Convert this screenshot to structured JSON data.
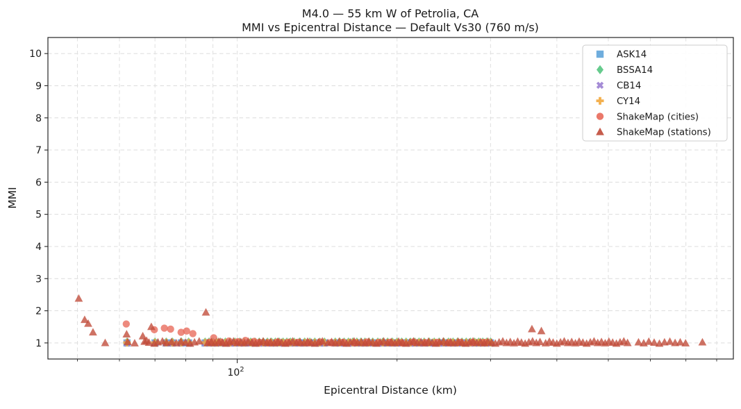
{
  "chart_data": {
    "type": "scatter",
    "title": "M4.0 — 55 km W of Petrolia, CA",
    "subtitle": "MMI vs Epicentral Distance — Default Vs30 (760 m/s)",
    "xlabel": "Epicentral Distance (km)",
    "ylabel": "MMI",
    "x_scale": "log",
    "xlim": [
      44,
      860
    ],
    "ylim": [
      0.5,
      10.5
    ],
    "grid": true,
    "y_ticks": [
      1,
      2,
      3,
      4,
      5,
      6,
      7,
      8,
      9,
      10
    ],
    "x_major_ticks": [
      {
        "value": 100,
        "base": "10",
        "exponent": "2"
      }
    ],
    "x_minor_ticks": [
      50,
      60,
      70,
      80,
      90,
      200,
      300,
      400,
      500,
      600,
      700,
      800
    ],
    "legend": {
      "position": "upper right"
    },
    "gmpe_distances_km": [
      62,
      70,
      73.5,
      75.5,
      78.5,
      81,
      87,
      88.5,
      90,
      91.5,
      93,
      95,
      97,
      99,
      101,
      103,
      106,
      108,
      110,
      112,
      114,
      116,
      118,
      120,
      122,
      124,
      126,
      128,
      131,
      134,
      137,
      140,
      143,
      146,
      153,
      156,
      159,
      162,
      165,
      168,
      171,
      174,
      177,
      180,
      184,
      188,
      192,
      196,
      200,
      204,
      208,
      212,
      216,
      220,
      225,
      230,
      235,
      240,
      245,
      250,
      255,
      260,
      265,
      270,
      275,
      280,
      285,
      290,
      295,
      300
    ],
    "series": [
      {
        "name": "ASK14",
        "marker": "square",
        "color": "#5fa4d9",
        "x": "gmpe_distances_km",
        "y_const": 1.0
      },
      {
        "name": "BSSA14",
        "marker": "diamond",
        "color": "#55c581",
        "x": "gmpe_distances_km",
        "y_const": 1.03
      },
      {
        "name": "CB14",
        "marker": "x",
        "color": "#9b80d2",
        "x": "gmpe_distances_km",
        "y_const": 0.99
      },
      {
        "name": "CY14",
        "marker": "plus",
        "color": "#f2a73c",
        "x": "gmpe_distances_km",
        "y_const": 1.01
      },
      {
        "name": "ShakeMap (cities)",
        "marker": "circle",
        "color": "#e8695a",
        "points": [
          [
            61.8,
            1.59
          ],
          [
            69.8,
            1.41
          ],
          [
            72.9,
            1.46
          ],
          [
            74.9,
            1.43
          ],
          [
            78.4,
            1.33
          ],
          [
            80.3,
            1.37
          ],
          [
            82.5,
            1.29
          ],
          [
            88.6,
            1.02
          ],
          [
            90.3,
            1.16
          ],
          [
            93.1,
            1.03
          ],
          [
            96.5,
            1.06
          ],
          [
            100.3,
            1.04
          ],
          [
            103.6,
            1.08
          ],
          [
            107.6,
            1.05
          ],
          [
            110.2,
            1.02
          ],
          [
            114.3,
            1.0
          ],
          [
            119.2,
            1.03
          ],
          [
            124.3,
            1.01
          ],
          [
            130.1,
            1.02
          ],
          [
            136.2,
            1.0
          ],
          [
            143.1,
            1.03
          ],
          [
            150.2,
            1.01
          ],
          [
            158.3,
            1.02
          ],
          [
            166.4,
            1.0
          ],
          [
            175.2,
            1.03
          ],
          [
            184.3,
            1.01
          ],
          [
            193.9,
            1.02
          ],
          [
            204.1,
            1.0
          ],
          [
            214.8,
            1.03
          ],
          [
            226.0,
            1.01
          ],
          [
            237.8,
            1.02
          ],
          [
            250.2,
            1.0
          ],
          [
            263.3,
            1.02
          ],
          [
            277.1,
            1.01
          ],
          [
            291.6,
            1.02
          ]
        ]
      },
      {
        "name": "ShakeMap (stations)",
        "marker": "triangle",
        "color": "#c04a38",
        "points": [
          [
            50.3,
            2.38
          ],
          [
            51.6,
            1.72
          ],
          [
            52.4,
            1.6
          ],
          [
            53.5,
            1.33
          ],
          [
            61.9,
            1.27
          ],
          [
            66.4,
            1.21
          ],
          [
            67.5,
            1.07
          ],
          [
            68.9,
            1.5
          ],
          [
            87.3,
            1.95
          ],
          [
            359,
            1.43
          ],
          [
            374,
            1.37
          ],
          [
            56.4,
            1.0
          ],
          [
            62.2,
            1.03
          ],
          [
            64.1,
            0.99
          ],
          [
            66.9,
            1.04
          ],
          [
            68.2,
            1.01
          ],
          [
            69.8,
            0.98
          ],
          [
            70.9,
            1.02
          ],
          [
            72.3,
            1.05
          ],
          [
            73.6,
            1.0
          ],
          [
            75.2,
            1.03
          ],
          [
            76.8,
            0.99
          ],
          [
            78.3,
            1.04
          ],
          [
            79.9,
            1.01
          ],
          [
            81.5,
            0.98
          ],
          [
            83.1,
            1.02
          ],
          [
            84.8,
            1.05
          ],
          [
            88.0,
            1.0
          ],
          [
            89.4,
            1.03
          ],
          [
            90.8,
            0.99
          ],
          [
            92.3,
            1.04
          ],
          [
            93.8,
            1.01
          ],
          [
            95.3,
            0.98
          ],
          [
            96.8,
            1.02
          ],
          [
            98.4,
            1.05
          ],
          [
            100.0,
            1.0
          ],
          [
            101.6,
            1.03
          ],
          [
            103.2,
            0.99
          ],
          [
            104.9,
            1.04
          ],
          [
            106.6,
            1.01
          ],
          [
            108.3,
            0.98
          ],
          [
            110.1,
            1.02
          ],
          [
            111.9,
            1.05
          ],
          [
            113.7,
            1.0
          ],
          [
            115.5,
            1.03
          ],
          [
            117.4,
            0.99
          ],
          [
            119.3,
            1.04
          ],
          [
            121.2,
            1.01
          ],
          [
            123.2,
            0.98
          ],
          [
            125.2,
            1.02
          ],
          [
            127.2,
            1.05
          ],
          [
            129.3,
            1.0
          ],
          [
            131.4,
            1.03
          ],
          [
            133.5,
            0.99
          ],
          [
            135.7,
            1.04
          ],
          [
            137.9,
            1.01
          ],
          [
            140.1,
            0.98
          ],
          [
            142.4,
            1.02
          ],
          [
            144.7,
            1.05
          ],
          [
            148.2,
            1.0
          ],
          [
            150.6,
            1.03
          ],
          [
            153.1,
            0.99
          ],
          [
            155.6,
            1.04
          ],
          [
            158.1,
            1.01
          ],
          [
            160.7,
            0.98
          ],
          [
            163.3,
            1.02
          ],
          [
            166.0,
            1.05
          ],
          [
            168.7,
            1.0
          ],
          [
            171.4,
            1.03
          ],
          [
            174.2,
            0.99
          ],
          [
            177.0,
            1.04
          ],
          [
            179.9,
            1.01
          ],
          [
            182.8,
            0.98
          ],
          [
            185.8,
            1.02
          ],
          [
            188.8,
            1.05
          ],
          [
            191.9,
            1.0
          ],
          [
            195.0,
            1.03
          ],
          [
            198.2,
            0.99
          ],
          [
            201.4,
            1.04
          ],
          [
            204.7,
            1.01
          ],
          [
            208.0,
            0.98
          ],
          [
            211.4,
            1.02
          ],
          [
            214.8,
            1.05
          ],
          [
            218.3,
            1.0
          ],
          [
            221.9,
            1.03
          ],
          [
            225.5,
            0.99
          ],
          [
            229.2,
            1.04
          ],
          [
            232.9,
            1.01
          ],
          [
            236.7,
            0.98
          ],
          [
            240.5,
            1.02
          ],
          [
            244.4,
            1.05
          ],
          [
            248.4,
            1.0
          ],
          [
            252.4,
            1.03
          ],
          [
            256.5,
            0.99
          ],
          [
            260.7,
            1.04
          ],
          [
            265.0,
            1.01
          ],
          [
            269.3,
            0.98
          ],
          [
            273.7,
            1.02
          ],
          [
            278.1,
            1.05
          ],
          [
            282.6,
            1.0
          ],
          [
            287.2,
            1.03
          ],
          [
            291.9,
            0.99
          ],
          [
            296.6,
            1.04
          ],
          [
            301.5,
            1.01
          ],
          [
            306.4,
            0.98
          ],
          [
            311.4,
            1.02
          ],
          [
            316.4,
            1.05
          ],
          [
            321.6,
            1.0
          ],
          [
            326.8,
            1.03
          ],
          [
            332.1,
            0.99
          ],
          [
            337.5,
            1.04
          ],
          [
            343.0,
            1.01
          ],
          [
            348.6,
            0.98
          ],
          [
            354.3,
            1.02
          ],
          [
            360.0,
            1.05
          ],
          [
            365.9,
            1.0
          ],
          [
            371.8,
            1.03
          ],
          [
            381.0,
            0.99
          ],
          [
            387.2,
            1.04
          ],
          [
            393.5,
            1.01
          ],
          [
            399.9,
            0.98
          ],
          [
            406.4,
            1.02
          ],
          [
            413.0,
            1.05
          ],
          [
            419.8,
            1.0
          ],
          [
            426.6,
            1.03
          ],
          [
            433.5,
            0.99
          ],
          [
            440.6,
            1.04
          ],
          [
            447.8,
            1.01
          ],
          [
            455.1,
            0.98
          ],
          [
            462.5,
            1.02
          ],
          [
            470.0,
            1.05
          ],
          [
            477.6,
            1.0
          ],
          [
            485.4,
            1.03
          ],
          [
            493.3,
            0.99
          ],
          [
            501.3,
            1.04
          ],
          [
            509.5,
            1.01
          ],
          [
            517.8,
            0.98
          ],
          [
            526.2,
            1.02
          ],
          [
            534.8,
            1.05
          ],
          [
            543.5,
            1.0
          ],
          [
            570,
            1.02
          ],
          [
            583,
            0.99
          ],
          [
            596,
            1.04
          ],
          [
            610,
            1.01
          ],
          [
            624,
            0.98
          ],
          [
            638,
            1.02
          ],
          [
            653,
            1.04
          ],
          [
            668,
            1.0
          ],
          [
            683,
            1.02
          ],
          [
            699,
            0.99
          ],
          [
            752,
            1.02
          ]
        ]
      }
    ]
  }
}
